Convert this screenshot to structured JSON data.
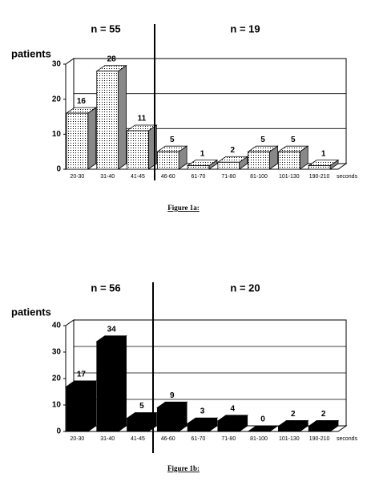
{
  "chart_data": [
    {
      "type": "bar3d",
      "n_left": "n = 55",
      "n_right": "n = 19",
      "y_label": "patients",
      "x_unit": "seconds",
      "caption": "Figure 1a:",
      "categories": [
        "20-30",
        "31-40",
        "41-45",
        "46-60",
        "61-70",
        "71-80",
        "81-100",
        "101-130",
        "190-210"
      ],
      "values": [
        16,
        28,
        11,
        5,
        1,
        2,
        5,
        5,
        1
      ],
      "color": "#000000",
      "fill_style": "dotted",
      "ylim": [
        0,
        30
      ],
      "yticks": [
        0,
        10,
        20,
        30
      ],
      "grid": true
    },
    {
      "type": "bar3d",
      "n_left": "n = 56",
      "n_right": "n = 20",
      "y_label": "patients",
      "x_unit": "seconds",
      "caption": "Figure 1b:",
      "categories": [
        "20-30",
        "31-40",
        "41-45",
        "46-60",
        "61-70",
        "71-80",
        "81-100",
        "101-130",
        "190-210"
      ],
      "values": [
        17,
        34,
        5,
        9,
        3,
        4,
        0,
        2,
        2
      ],
      "color": "#000000",
      "fill_style": "solid",
      "ylim": [
        0,
        40
      ],
      "yticks": [
        0,
        10,
        20,
        30,
        40
      ],
      "grid": true
    }
  ]
}
